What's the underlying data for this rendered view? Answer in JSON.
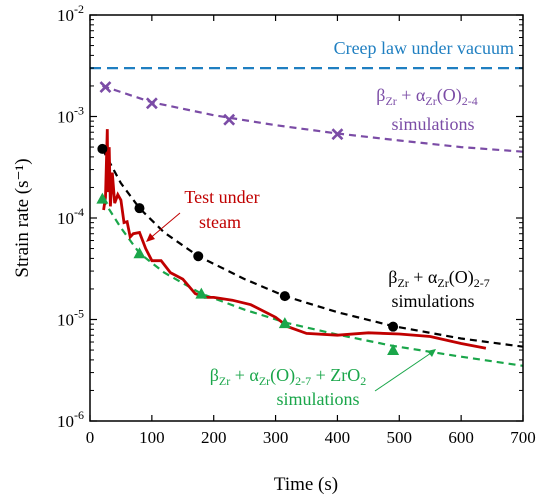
{
  "chart_data": {
    "type": "line",
    "xlabel": "Time (s)",
    "ylabel": "Strain rate (s⁻¹)",
    "xlim": [
      0,
      700
    ],
    "ylim": [
      1e-06,
      0.01
    ],
    "yscale": "log",
    "x_ticks": [
      0,
      100,
      200,
      300,
      400,
      500,
      600,
      700
    ],
    "y_ticks": [
      {
        "value": 1e-06,
        "base": "10",
        "exp": "-6"
      },
      {
        "value": 1e-05,
        "base": "10",
        "exp": "-5"
      },
      {
        "value": 0.0001,
        "base": "10",
        "exp": "-4"
      },
      {
        "value": 0.001,
        "base": "10",
        "exp": "-3"
      },
      {
        "value": 0.01,
        "base": "10",
        "exp": "-2"
      }
    ],
    "series": [
      {
        "name": "Creep law under vacuum",
        "style": "dashed",
        "color": "#1f7fc1",
        "x": [
          0,
          700
        ],
        "y": [
          0.003,
          0.003
        ]
      },
      {
        "name": "βZr + αZr(O)2-4 simulations",
        "style": "dashed",
        "color": "#7b4ca6",
        "marker": "x",
        "x": [
          20,
          100,
          200,
          300,
          400,
          500,
          600,
          700
        ],
        "y": [
          0.002,
          0.00138,
          0.00103,
          0.00082,
          0.00068,
          0.00058,
          0.0005,
          0.00045
        ],
        "points": {
          "x": [
            25,
            100,
            225,
            400
          ],
          "y": [
            0.00195,
            0.00135,
            0.00093,
            0.00067
          ]
        }
      },
      {
        "name": "βZr + αZr(O)2-7 simulations",
        "style": "dashed",
        "color": "#000000",
        "marker": "circle",
        "x": [
          20,
          50,
          80,
          120,
          175,
          250,
          315,
          400,
          490,
          600,
          700
        ],
        "y": [
          0.00048,
          0.00022,
          0.000125,
          7.2e-05,
          4.2e-05,
          2.5e-05,
          1.7e-05,
          1.18e-05,
          8.6e-06,
          6.5e-06,
          5.4e-06
        ],
        "points": {
          "x": [
            20,
            80,
            175,
            315,
            490
          ],
          "y": [
            0.00048,
            0.000125,
            4.2e-05,
            1.7e-05,
            8.5e-06
          ]
        }
      },
      {
        "name": "βZr + αZr(O)2-7 + ZrO2 simulations",
        "style": "dashed",
        "color": "#1aa64a",
        "marker": "triangle",
        "x": [
          20,
          50,
          80,
          120,
          180,
          250,
          320,
          400,
          490,
          600,
          700
        ],
        "y": [
          0.000155,
          8e-05,
          4.5e-05,
          2.9e-05,
          1.8e-05,
          1.25e-05,
          9.2e-06,
          7.1e-06,
          5.5e-06,
          4.3e-06,
          3.5e-06
        ],
        "points": {
          "x": [
            20,
            80,
            180,
            315,
            490
          ],
          "y": [
            0.000155,
            4.5e-05,
            1.8e-05,
            9.2e-06,
            5e-06
          ]
        }
      },
      {
        "name": "Test under steam",
        "style": "solid",
        "color": "#c00000",
        "x": [
          22,
          25,
          28,
          29,
          31,
          33,
          36,
          40,
          45,
          50,
          55,
          60,
          65,
          70,
          80,
          90,
          100,
          115,
          130,
          150,
          170,
          185,
          200,
          230,
          260,
          300,
          320,
          350,
          400,
          450,
          500,
          550,
          600,
          640
        ],
        "y": [
          0.00012,
          0.00016,
          0.00075,
          0.00018,
          0.0005,
          0.00013,
          0.00028,
          0.00014,
          0.00017,
          0.00015,
          9e-05,
          9.2e-05,
          6.5e-05,
          7e-05,
          7.2e-05,
          5e-05,
          3.8e-05,
          3.8e-05,
          2.9e-05,
          2.5e-05,
          1.8e-05,
          1.65e-05,
          1.65e-05,
          1.55e-05,
          1.4e-05,
          1.05e-05,
          8.5e-06,
          7.3e-06,
          7e-06,
          7.4e-06,
          7.2e-06,
          6.8e-06,
          5.8e-06,
          5.2e-06
        ]
      }
    ],
    "annotations": {
      "vacuum": {
        "text": "Creep law under vacuum",
        "color": "#1f7fc1"
      },
      "sim24": {
        "line1_beta": "β",
        "line1_beta_sub": "Zr",
        "line1_mid": " + α",
        "line1_alpha_sub": "Zr",
        "line1_o": "(O)",
        "line1_o_sub": "2-4",
        "line2": "simulations",
        "color": "#7b4ca6"
      },
      "sim27": {
        "line1_beta": "β",
        "line1_beta_sub": "Zr",
        "line1_mid": " + α",
        "line1_alpha_sub": "Zr",
        "line1_o": "(O)",
        "line1_o_sub": "2-7",
        "line2": "simulations",
        "color": "#000000"
      },
      "simZrO2": {
        "line1_beta": "β",
        "line1_beta_sub": "Zr",
        "line1_mid": " + α",
        "line1_alpha_sub": "Zr",
        "line1_o": "(O)",
        "line1_o_sub": "2-7",
        "line1_plus": " + ZrO",
        "line1_zr_sub": "2",
        "line2": "simulations",
        "color": "#1aa64a"
      },
      "steam": {
        "line1": "Test under",
        "line2": "steam",
        "color": "#c00000"
      }
    }
  }
}
